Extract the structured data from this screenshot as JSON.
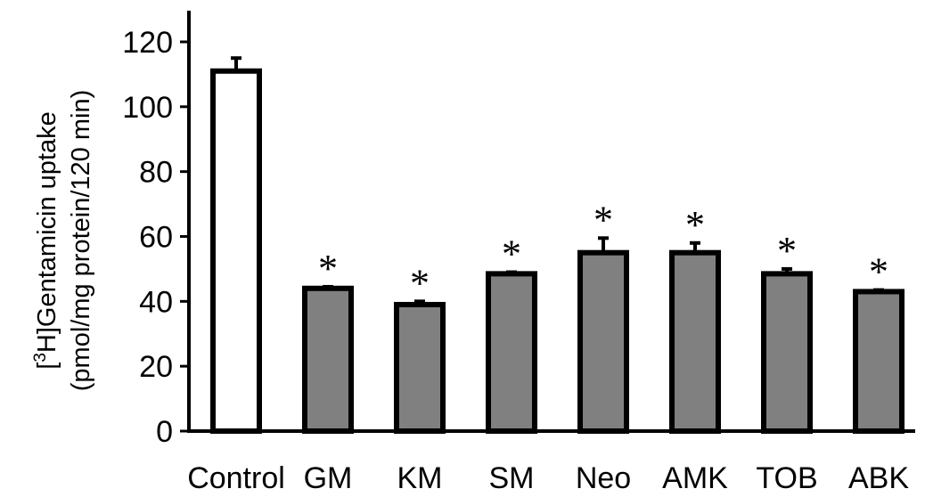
{
  "chart_data": {
    "type": "bar",
    "categories": [
      "Control",
      "GM",
      "KM",
      "SM",
      "Neo",
      "AMK",
      "TOB",
      "ABK"
    ],
    "values": [
      111,
      44,
      39,
      48.5,
      55,
      55,
      48.5,
      43
    ],
    "errors": [
      4,
      0.5,
      1,
      0.5,
      4.5,
      3,
      1.5,
      0.5
    ],
    "significance": [
      "",
      "*",
      "*",
      "*",
      "*",
      "*",
      "*",
      "*"
    ],
    "bar_colors": [
      "#ffffff",
      "#808080",
      "#808080",
      "#808080",
      "#808080",
      "#808080",
      "#808080",
      "#808080"
    ],
    "ylabel_line1_prefix": "[",
    "ylabel_line1_sup": "3",
    "ylabel_line1_rest": "H]Gentamicin uptake",
    "ylabel_line2": "(pmol/mg protein/120 min)",
    "xlabel": "",
    "ylim": [
      0,
      130
    ],
    "yticks": [
      0,
      20,
      40,
      60,
      80,
      100,
      120
    ],
    "grid": false,
    "legend": "none"
  }
}
